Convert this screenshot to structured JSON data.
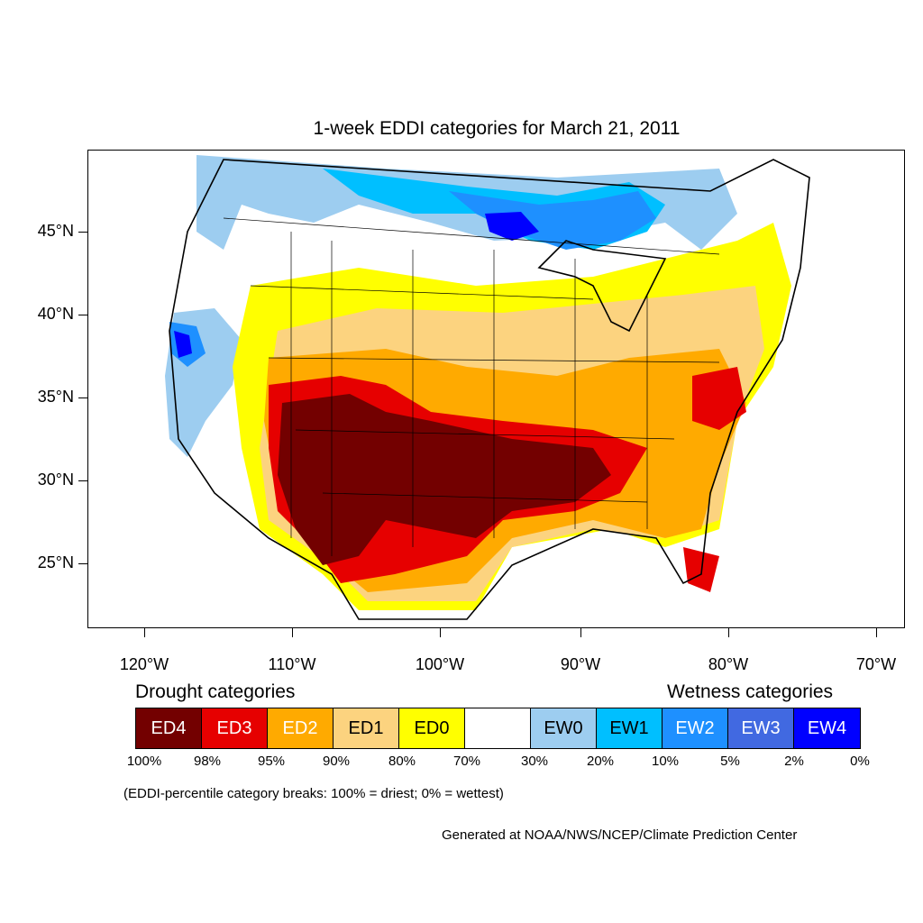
{
  "title": "1-week EDDI categories for March 21, 2011",
  "axes": {
    "x_ticks": [
      "120°W",
      "110°W",
      "100°W",
      "90°W",
      "80°W",
      "70°W"
    ],
    "y_ticks": [
      "45°N",
      "40°N",
      "35°N",
      "30°N",
      "25°N"
    ]
  },
  "legend": {
    "drought_title": "Drought categories",
    "wetness_title": "Wetness categories",
    "categories": [
      {
        "label": "ED4",
        "color": "#730000",
        "text_color": "#ffffff"
      },
      {
        "label": "ED3",
        "color": "#e60000",
        "text_color": "#ffffff"
      },
      {
        "label": "ED2",
        "color": "#ffaa00",
        "text_color": "#ffffff"
      },
      {
        "label": "ED1",
        "color": "#fcd37f",
        "text_color": "#000000"
      },
      {
        "label": "ED0",
        "color": "#ffff00",
        "text_color": "#000000"
      },
      {
        "label": "",
        "color": "#ffffff",
        "text_color": "#000000"
      },
      {
        "label": "EW0",
        "color": "#9dcdf0",
        "text_color": "#000000"
      },
      {
        "label": "EW1",
        "color": "#00bfff",
        "text_color": "#000000"
      },
      {
        "label": "EW2",
        "color": "#1e90ff",
        "text_color": "#ffffff"
      },
      {
        "label": "EW3",
        "color": "#4169e1",
        "text_color": "#ffffff"
      },
      {
        "label": "EW4",
        "color": "#0000ff",
        "text_color": "#ffffff"
      }
    ],
    "breaks": [
      "100%",
      "98%",
      "95%",
      "90%",
      "80%",
      "70%",
      "30%",
      "20%",
      "10%",
      "5%",
      "2%",
      "0%"
    ]
  },
  "note": "(EDDI-percentile category breaks: 100% = driest; 0% = wettest)",
  "credit": "Generated at NOAA/NWS/NCEP/Climate Prediction Center"
}
